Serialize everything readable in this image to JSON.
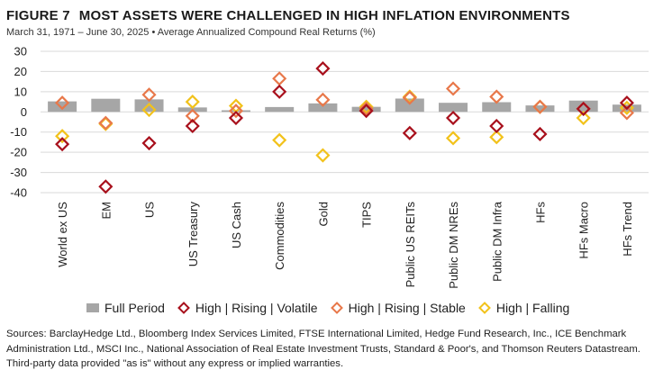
{
  "header": {
    "figure_label": "FIGURE 7",
    "title": "MOST ASSETS WERE CHALLENGED IN HIGH INFLATION ENVIRONMENTS",
    "subtitle": "March 31, 1971 – June 30, 2025 • Average Annualized Compound Real Returns (%)"
  },
  "legend": {
    "full_period": "Full Period",
    "rising_volatile": "High | Rising | Volatile",
    "rising_stable": "High | Rising | Stable",
    "falling": "High | Falling"
  },
  "colors": {
    "bar": "#a6a6a6",
    "rising_volatile": "#a8101c",
    "rising_stable": "#e8784a",
    "falling": "#f2c21b",
    "grid": "#d9d9d9"
  },
  "chart_data": {
    "type": "bar",
    "title": "MOST ASSETS WERE CHALLENGED IN HIGH INFLATION ENVIRONMENTS",
    "xlabel": "",
    "ylabel": "",
    "ylim": [
      -40,
      30
    ],
    "yticks": [
      30,
      20,
      10,
      0,
      -10,
      -20,
      -30,
      -40
    ],
    "grid": true,
    "legend_position": "bottom",
    "categories": [
      "World ex US",
      "EM",
      "US",
      "US Treasury",
      "US Cash",
      "Commodities",
      "Gold",
      "TIPS",
      "Public US REITs",
      "Public DM NREs",
      "Public DM Infra",
      "HFs",
      "HFs Macro",
      "HFs Trend"
    ],
    "series": [
      {
        "name": "Full Period",
        "kind": "bar",
        "values": [
          5.2,
          6.5,
          6.2,
          2.2,
          0.8,
          2.4,
          4.2,
          2.5,
          6.6,
          4.5,
          4.8,
          3.2,
          5.6,
          3.6
        ]
      },
      {
        "name": "High | Rising | Volatile",
        "kind": "marker",
        "values": [
          -16,
          -37,
          -15.5,
          -7,
          -3,
          10,
          21.5,
          0.5,
          -10.5,
          -3,
          -7,
          -11,
          1.5,
          4.5
        ]
      },
      {
        "name": "High | Rising | Stable",
        "kind": "marker",
        "values": [
          4.5,
          -5.5,
          8.5,
          -2,
          0.5,
          16.5,
          6,
          1.5,
          7,
          11.5,
          7.5,
          2.5,
          1.5,
          -0.5
        ]
      },
      {
        "name": "High | Falling",
        "kind": "marker",
        "values": [
          -12,
          -6,
          1,
          5,
          3,
          -14,
          -21.5,
          2.5,
          7.5,
          -13,
          -12.5,
          2.5,
          -3,
          2
        ]
      }
    ]
  },
  "sources": "Sources: BarclayHedge Ltd., Bloomberg Index Services Limited, FTSE International Limited, Hedge Fund Research, Inc., ICE Benchmark Administration Ltd., MSCI Inc., National Association of Real Estate Investment Trusts, Standard & Poor's, and Thomson Reuters Datastream. Third-party data provided \"as is\" without any express or implied warranties."
}
